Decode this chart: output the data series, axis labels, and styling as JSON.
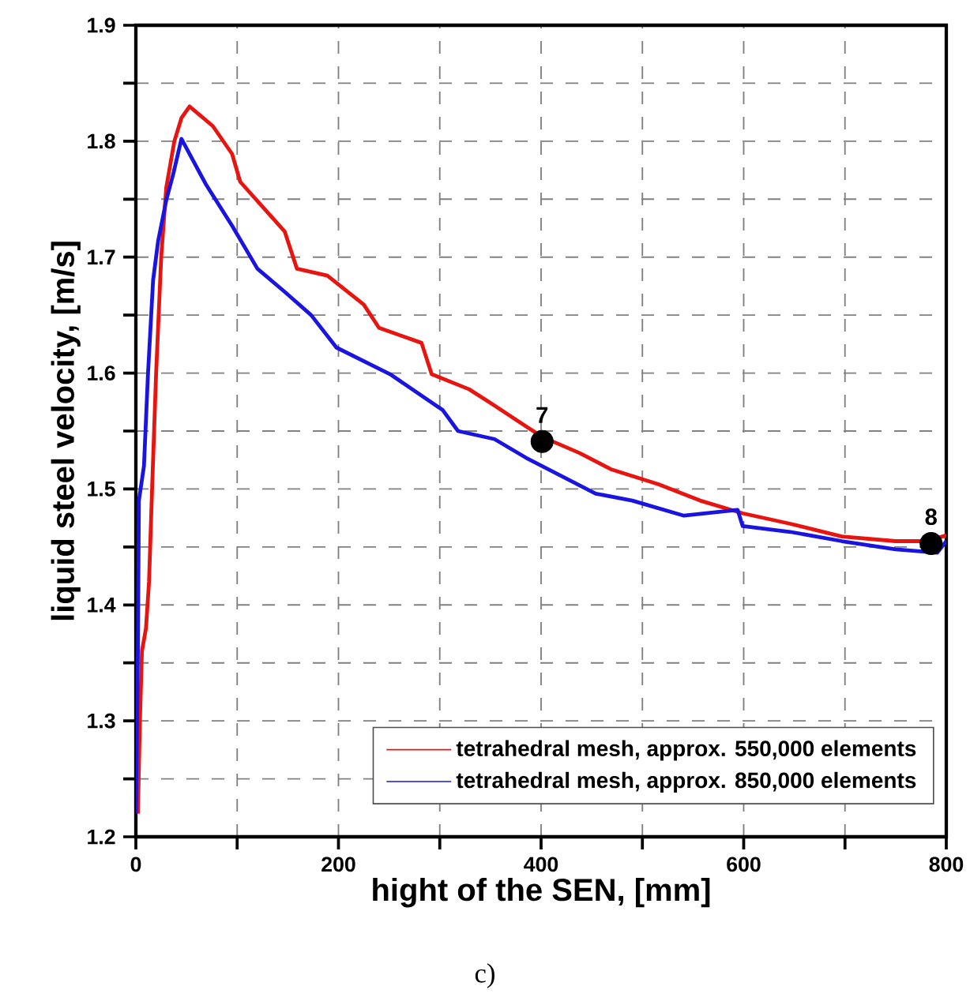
{
  "chart_data": {
    "type": "line",
    "xlabel": "hight of the SEN, [mm]",
    "ylabel": "liquid steel velocity, [m/s]",
    "xlim": [
      0,
      800
    ],
    "ylim": [
      1.2,
      1.9
    ],
    "xticks": [
      0,
      {
        "value": 100,
        "label": null
      },
      200,
      {
        "value": 300,
        "label": null
      },
      400,
      {
        "value": 500,
        "label": null
      },
      600,
      {
        "value": 700,
        "label": null
      },
      800
    ],
    "yticks": [
      1.2,
      {
        "value": 1.25,
        "label": null
      },
      1.3,
      {
        "value": 1.35,
        "label": null
      },
      1.4,
      {
        "value": 1.45,
        "label": null
      },
      1.5,
      {
        "value": 1.55,
        "label": null
      },
      1.6,
      {
        "value": 1.65,
        "label": null
      },
      1.7,
      {
        "value": 1.75,
        "label": null
      },
      1.8,
      {
        "value": 1.85,
        "label": null
      },
      1.9
    ],
    "grid": true,
    "legend": "bottom right",
    "marker": "none",
    "line_style": "solid",
    "series": [
      {
        "name": "tetrahedral mesh, approx. 550,000 elements",
        "color": "#e8140f",
        "x": [
          2,
          4,
          6,
          10,
          13,
          16,
          20,
          25,
          30,
          38,
          45,
          53,
          76,
          95,
          103,
          147,
          159,
          189,
          225,
          240,
          282,
          292,
          329,
          354,
          385,
          401,
          438,
          469,
          516,
          557,
          599,
          646,
          697,
          750,
          781,
          800
        ],
        "values": [
          1.22,
          1.3,
          1.36,
          1.38,
          1.42,
          1.5,
          1.6,
          1.7,
          1.76,
          1.8,
          1.82,
          1.83,
          1.813,
          1.789,
          1.765,
          1.722,
          1.69,
          1.684,
          1.659,
          1.639,
          1.626,
          1.599,
          1.586,
          1.572,
          1.554,
          1.545,
          1.531,
          1.517,
          1.504,
          1.49,
          1.479,
          1.47,
          1.459,
          1.455,
          1.455,
          1.46
        ]
      },
      {
        "name": "tetrahedral mesh, approx. 850,000 elements",
        "color": "#1a14e0",
        "x": [
          0,
          2,
          3,
          8,
          12,
          17,
          22,
          30,
          37,
          45,
          69,
          95,
          120,
          147,
          173,
          198,
          251,
          303,
          318,
          354,
          385,
          454,
          490,
          541,
          594,
          599,
          646,
          697,
          750,
          791,
          800
        ],
        "values": [
          1.22,
          1.36,
          1.49,
          1.52,
          1.6,
          1.68,
          1.714,
          1.749,
          1.772,
          1.802,
          1.763,
          1.727,
          1.69,
          1.67,
          1.65,
          1.622,
          1.599,
          1.568,
          1.55,
          1.543,
          1.527,
          1.496,
          1.49,
          1.477,
          1.482,
          1.468,
          1.463,
          1.455,
          1.448,
          1.445,
          1.455
        ]
      },
      {
        "type": "scatter",
        "marker": "circle",
        "color": "#000000",
        "x": [
          401,
          785
        ],
        "values": [
          1.541,
          1.453
        ]
      }
    ],
    "annotations": [
      {
        "text": "7",
        "x": 401,
        "y": 1.541
      },
      {
        "text": "8",
        "x": 785,
        "y": 1.453
      },
      "c)"
    ]
  }
}
